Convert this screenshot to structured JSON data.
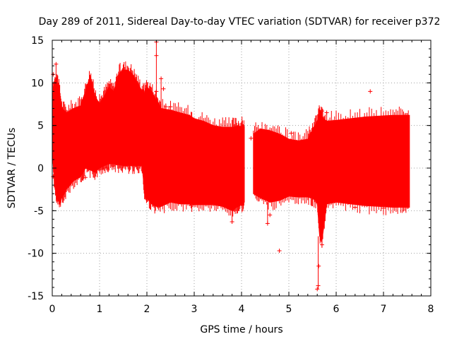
{
  "chart_data": {
    "type": "scatter",
    "title": "Day 289 of 2011, Sidereal Day-to-day VTEC variation (SDTVAR) for receiver p372",
    "xlabel": "GPS time / hours",
    "ylabel": "SDTVAR / TECUs",
    "xlim": [
      0,
      8
    ],
    "ylim": [
      -15,
      15
    ],
    "xticks": [
      0,
      1,
      2,
      3,
      4,
      5,
      6,
      7,
      8
    ],
    "yticks": [
      -15,
      -10,
      -5,
      0,
      5,
      10,
      15
    ],
    "grid": true,
    "series": [
      {
        "name": "SDTVAR",
        "color": "#ff0000",
        "marker": "plus",
        "style": "dense point cloud with error bars",
        "envelope": {
          "x": [
            0.0,
            0.05,
            0.1,
            0.15,
            0.2,
            0.3,
            0.45,
            0.6,
            0.7,
            0.8,
            0.9,
            1.0,
            1.1,
            1.2,
            1.3,
            1.4,
            1.5,
            1.6,
            1.7,
            1.8,
            1.9,
            1.95,
            2.0,
            2.1,
            2.2,
            2.3,
            2.5,
            2.7,
            2.9,
            3.0,
            3.2,
            3.4,
            3.6,
            3.8,
            3.9,
            4.0,
            4.06
          ],
          "upper": [
            8.3,
            10.0,
            10.5,
            9.0,
            7.0,
            6.5,
            7.0,
            7.3,
            9.0,
            10.8,
            8.5,
            7.5,
            8.5,
            9.5,
            9.0,
            11.0,
            11.5,
            11.5,
            11.0,
            10.0,
            9.0,
            8.8,
            9.5,
            9.0,
            8.0,
            7.0,
            6.8,
            6.5,
            6.2,
            5.8,
            5.5,
            5.0,
            4.8,
            4.8,
            4.9,
            4.9,
            4.9
          ],
          "lower": [
            2.0,
            -2.0,
            -3.5,
            -4.0,
            -3.5,
            -2.5,
            -1.5,
            -1.0,
            0.0,
            -0.2,
            -0.5,
            0.0,
            0.3,
            0.5,
            0.5,
            0.4,
            0.3,
            0.3,
            0.3,
            0.3,
            0.3,
            -3.0,
            -3.5,
            -4.2,
            -4.5,
            -4.5,
            -4.0,
            -4.2,
            -4.2,
            -4.3,
            -4.3,
            -4.3,
            -4.5,
            -5.0,
            -4.6,
            -4.3,
            -4.0
          ]
        },
        "envelope2": {
          "x": [
            4.25,
            4.4,
            4.6,
            4.8,
            5.0,
            5.2,
            5.4,
            5.5,
            5.6,
            5.65,
            5.7,
            5.8,
            6.0,
            6.3,
            6.6,
            6.9,
            7.2,
            7.4,
            7.55
          ],
          "upper": [
            4.0,
            4.6,
            4.4,
            4.0,
            3.4,
            3.2,
            3.4,
            4.5,
            5.5,
            6.5,
            6.0,
            5.5,
            5.6,
            5.8,
            6.0,
            6.1,
            6.2,
            6.2,
            6.2
          ],
          "lower": [
            -3.0,
            -3.5,
            -4.0,
            -3.8,
            -3.3,
            -3.4,
            -3.4,
            -3.5,
            -4.0,
            -8.0,
            -8.5,
            -4.2,
            -4.0,
            -4.2,
            -4.4,
            -4.5,
            -4.6,
            -4.6,
            -4.6
          ]
        },
        "outliers": [
          [
            2.2,
            14.8
          ],
          [
            2.2,
            13.2
          ],
          [
            2.3,
            10.5
          ],
          [
            2.35,
            9.3
          ],
          [
            2.4,
            7.2
          ],
          [
            0.02,
            11.0
          ],
          [
            0.08,
            12.2
          ],
          [
            0.02,
            -1.0
          ],
          [
            0.7,
            -1.1
          ],
          [
            0.9,
            0.3
          ],
          [
            1.15,
            0.0
          ],
          [
            1.55,
            0.4
          ],
          [
            2.2,
            9.0
          ],
          [
            2.3,
            6.8
          ],
          [
            2.5,
            7.2
          ],
          [
            3.8,
            -6.3
          ],
          [
            4.2,
            3.5
          ],
          [
            4.55,
            -6.5
          ],
          [
            4.6,
            -5.5
          ],
          [
            4.8,
            -9.7
          ],
          [
            5.05,
            4.1
          ],
          [
            5.6,
            -14.2
          ],
          [
            5.62,
            -13.8
          ],
          [
            5.63,
            -11.5
          ],
          [
            5.7,
            -9.0
          ],
          [
            5.7,
            6.7
          ],
          [
            5.8,
            6.5
          ],
          [
            6.72,
            9.0
          ],
          [
            6.4,
            -4.6
          ],
          [
            7.0,
            -4.7
          ]
        ]
      }
    ]
  }
}
